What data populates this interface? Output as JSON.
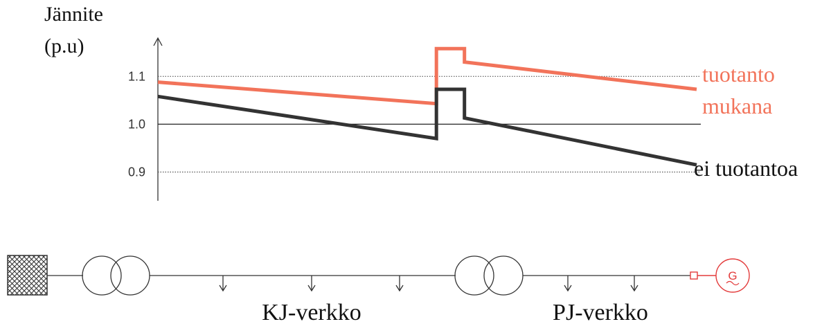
{
  "chart": {
    "y_label_line1": "Jännite",
    "y_label_line2": "(p.u)",
    "y_ticks": [
      {
        "label": "1.1",
        "value": 1.1,
        "dotted": true
      },
      {
        "label": "1.0",
        "value": 1.0,
        "dotted": false
      },
      {
        "label": "0.9",
        "value": 0.9,
        "dotted": true
      }
    ],
    "x_range": [
      0,
      100
    ],
    "y_range": [
      0.84,
      1.18
    ],
    "grid": "horizontal reference lines at 0.9, 1.0, 1.1",
    "series": [
      {
        "name_line1": "tuotanto",
        "name_line2": "mukana",
        "color": "#f2735a",
        "points": [
          [
            0,
            1.088
          ],
          [
            51.7,
            1.043
          ],
          [
            51.7,
            1.158
          ],
          [
            56.9,
            1.158
          ],
          [
            56.9,
            1.13
          ],
          [
            100,
            1.073
          ]
        ]
      },
      {
        "name_line1": "ei tuotantoa",
        "name_line2": "",
        "color": "#333333",
        "points": [
          [
            0,
            1.058
          ],
          [
            51.7,
            0.97
          ],
          [
            51.7,
            1.073
          ],
          [
            56.9,
            1.073
          ],
          [
            56.9,
            1.013
          ],
          [
            100,
            0.915
          ]
        ]
      }
    ]
  },
  "network": {
    "grid_label": "KJ-verkko",
    "dist_label": "PJ-verkko",
    "generator_symbol": "G",
    "generator_color": "#e33b3b",
    "line_color": "#333333"
  }
}
